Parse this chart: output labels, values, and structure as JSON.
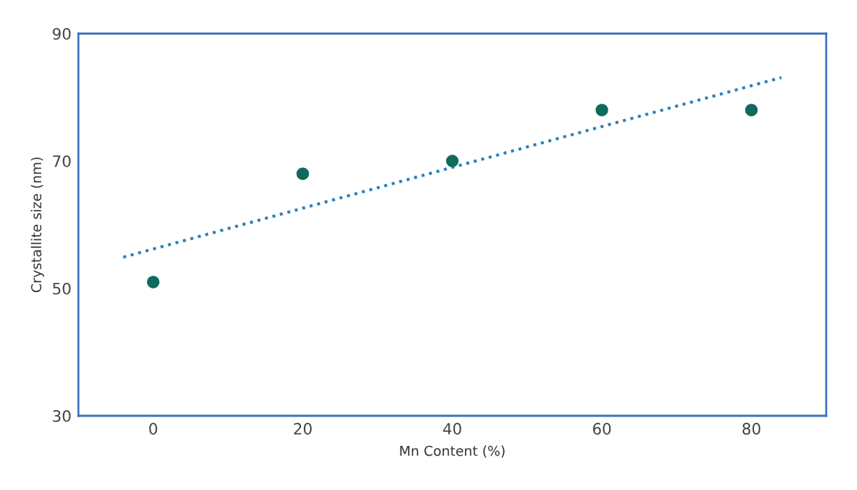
{
  "chart_data": {
    "type": "scatter",
    "xlabel": "Mn Content (%)",
    "ylabel": "Crystallite size (nm)",
    "x": [
      0,
      20,
      40,
      60,
      80
    ],
    "series": [
      {
        "color": "#0f6b5e",
        "values": [
          51,
          68,
          70,
          78,
          78
        ],
        "marker": "circle"
      },
      {
        "type": "line",
        "color": "#2a7fb8",
        "x": [
          -4,
          84
        ],
        "values": [
          54.9,
          83.1
        ],
        "line_style": "dotted",
        "marker": "none"
      }
    ],
    "xlim": [
      -10,
      90
    ],
    "xticks": [
      0,
      20,
      40,
      60,
      80
    ],
    "ylim": [
      30,
      90
    ],
    "yticks": [
      30,
      50,
      70,
      90
    ],
    "grid": false
  }
}
